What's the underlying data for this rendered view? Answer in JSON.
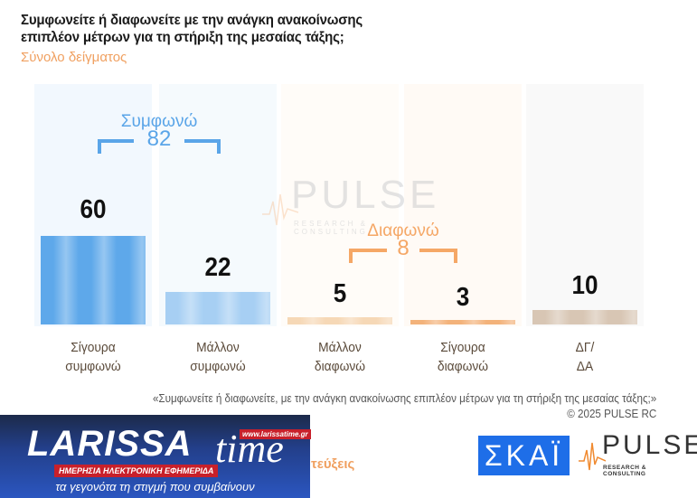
{
  "header": {
    "title_line1": "Συμφωνείτε ή διαφωνείτε με την ανάγκη ανακοίνωσης",
    "title_line2": "επιπλέον μέτρων για τη στήριξη της μεσαίας τάξης;",
    "subtitle": "Σύνολο δείγματος"
  },
  "chart_data": {
    "type": "bar",
    "title": "Συμφωνείτε ή διαφωνείτε με την ανάγκη ανακοίνωσης επιπλέον μέτρων για τη στήριξη της μεσαίας τάξης;",
    "subtitle": "Σύνολο δείγματος",
    "categories": [
      "Σίγουρα συμφωνώ",
      "Μάλλον συμφωνώ",
      "Μάλλον διαφωνώ",
      "Σίγουρα διαφωνώ",
      "ΔΓ/ΔΑ"
    ],
    "values": [
      60,
      22,
      5,
      3,
      10
    ],
    "unit": "%",
    "groups": [
      {
        "label": "Συμφωνώ",
        "total": 82,
        "members": [
          0,
          1
        ],
        "color": "#5aa5e8"
      },
      {
        "label": "Διαφωνώ",
        "total": 8,
        "members": [
          2,
          3
        ],
        "color": "#f5a766"
      }
    ],
    "xlabel": "",
    "ylabel": "",
    "grid": false,
    "legend": "none"
  },
  "bars": [
    {
      "value": "60",
      "line1": "Σίγουρα",
      "line2": "συμφωνώ",
      "color": "#5ea8ea",
      "height": 98,
      "bg": "#f2f8fe"
    },
    {
      "value": "22",
      "line1": "Μάλλον",
      "line2": "συμφωνώ",
      "color": "#a7cff3",
      "height": 36,
      "bg": "#f5fafd"
    },
    {
      "value": "5",
      "line1": "Μάλλον",
      "line2": "διαφωνώ",
      "color": "#f6d8b6",
      "height": 8,
      "bg": "#fffcf8"
    },
    {
      "value": "3",
      "line1": "Σίγουρα",
      "line2": "διαφωνώ",
      "color": "#f3b27a",
      "height": 5,
      "bg": "#fffaf5"
    },
    {
      "value": "10",
      "line1": "ΔΓ/",
      "line2": "ΔΑ",
      "color": "#d8c6b4",
      "height": 16,
      "bg": "#f9f9f9"
    }
  ],
  "groups": {
    "agree": {
      "label": "Συμφωνώ",
      "total": "82"
    },
    "disagree": {
      "label": "Διαφωνώ",
      "total": "8"
    }
  },
  "watermark": {
    "text": "PULSE",
    "sub": "RESEARCH & CONSULTING"
  },
  "footnote": {
    "question": "«Συμφωνείτε ή διαφωνείτε, με την ανάγκη ανακοίνωσης επιπλέον μέτρων για τη στήριξη της μεσαίας τάξης;»",
    "copyright": "©  2025  PULSE RC"
  },
  "banner": {
    "logo": "LARISSA",
    "logo_time": "time",
    "url": "www.larissatime.gr",
    "strip": "ΗΜΕΡΗΣΙΑ ΗΛΕΚΤΡΟΝΙΚΗ ΕΦΗΜΕΡΙΔΑ",
    "tagline": "τα γεγονότα τη στιγμή που συμβαίνουν"
  },
  "fragment_text": "τεύξεις",
  "logos": {
    "skai": "ΣΚΑΪ",
    "pulse": "PULSE",
    "pulse_sub": "RESEARCH & CONSULTING"
  }
}
